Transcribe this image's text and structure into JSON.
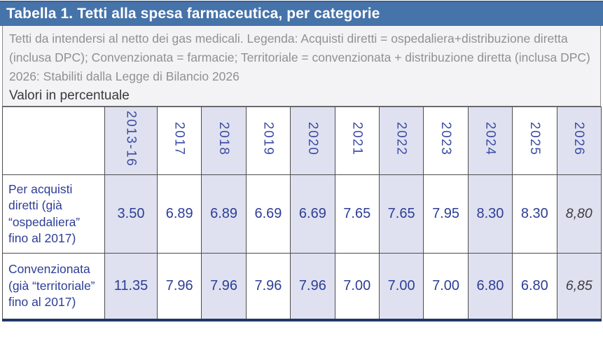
{
  "title": "Tabella 1. Tetti alla spesa farmaceutica, per categorie",
  "notes": {
    "legend": "Tetti da intendersi al netto dei gas medicali. Legenda: Acquisti diretti = ospedaliera+distribuzione diretta (inclusa DPC); Convenzionata = farmacie; Territoriale = convenzionata + distribuzione diretta (inclusa DPC)",
    "law_note": "2026: Stabiliti dalla Legge di Bilancio 2026",
    "unit_note": "Valori in percentuale"
  },
  "table": {
    "columns": [
      "2013-16",
      "2017",
      "2018",
      "2019",
      "2020",
      "2021",
      "2022",
      "2023",
      "2024",
      "2025",
      "2026"
    ],
    "rows": [
      {
        "label": "Per acquisti diretti (già “ospedaliera” fino al 2017)",
        "values": [
          "3.50",
          "6.89",
          "6.89",
          "6.69",
          "6.69",
          "7.65",
          "7.65",
          "7.95",
          "8.30",
          "8.30",
          "8,80"
        ]
      },
      {
        "label": "Convenzionata (già “territoriale” fino al 2017)",
        "values": [
          "11.35",
          "7.96",
          "7.96",
          "7.96",
          "7.96",
          "7.00",
          "7.00",
          "7.00",
          "6.80",
          "6.80",
          "6,85"
        ]
      }
    ]
  },
  "colors": {
    "title_bar": "#4673A9",
    "title_text": "#ffffff",
    "notes_bg": "#F3F3F5",
    "notes_text": "#909092",
    "year_text": "#3D4CA3",
    "value_text": "#2D3E96",
    "alt_column_bg": "#DFE1F0",
    "bottom_bar": "#1F3864",
    "cell_border": "#4d4d4d"
  }
}
